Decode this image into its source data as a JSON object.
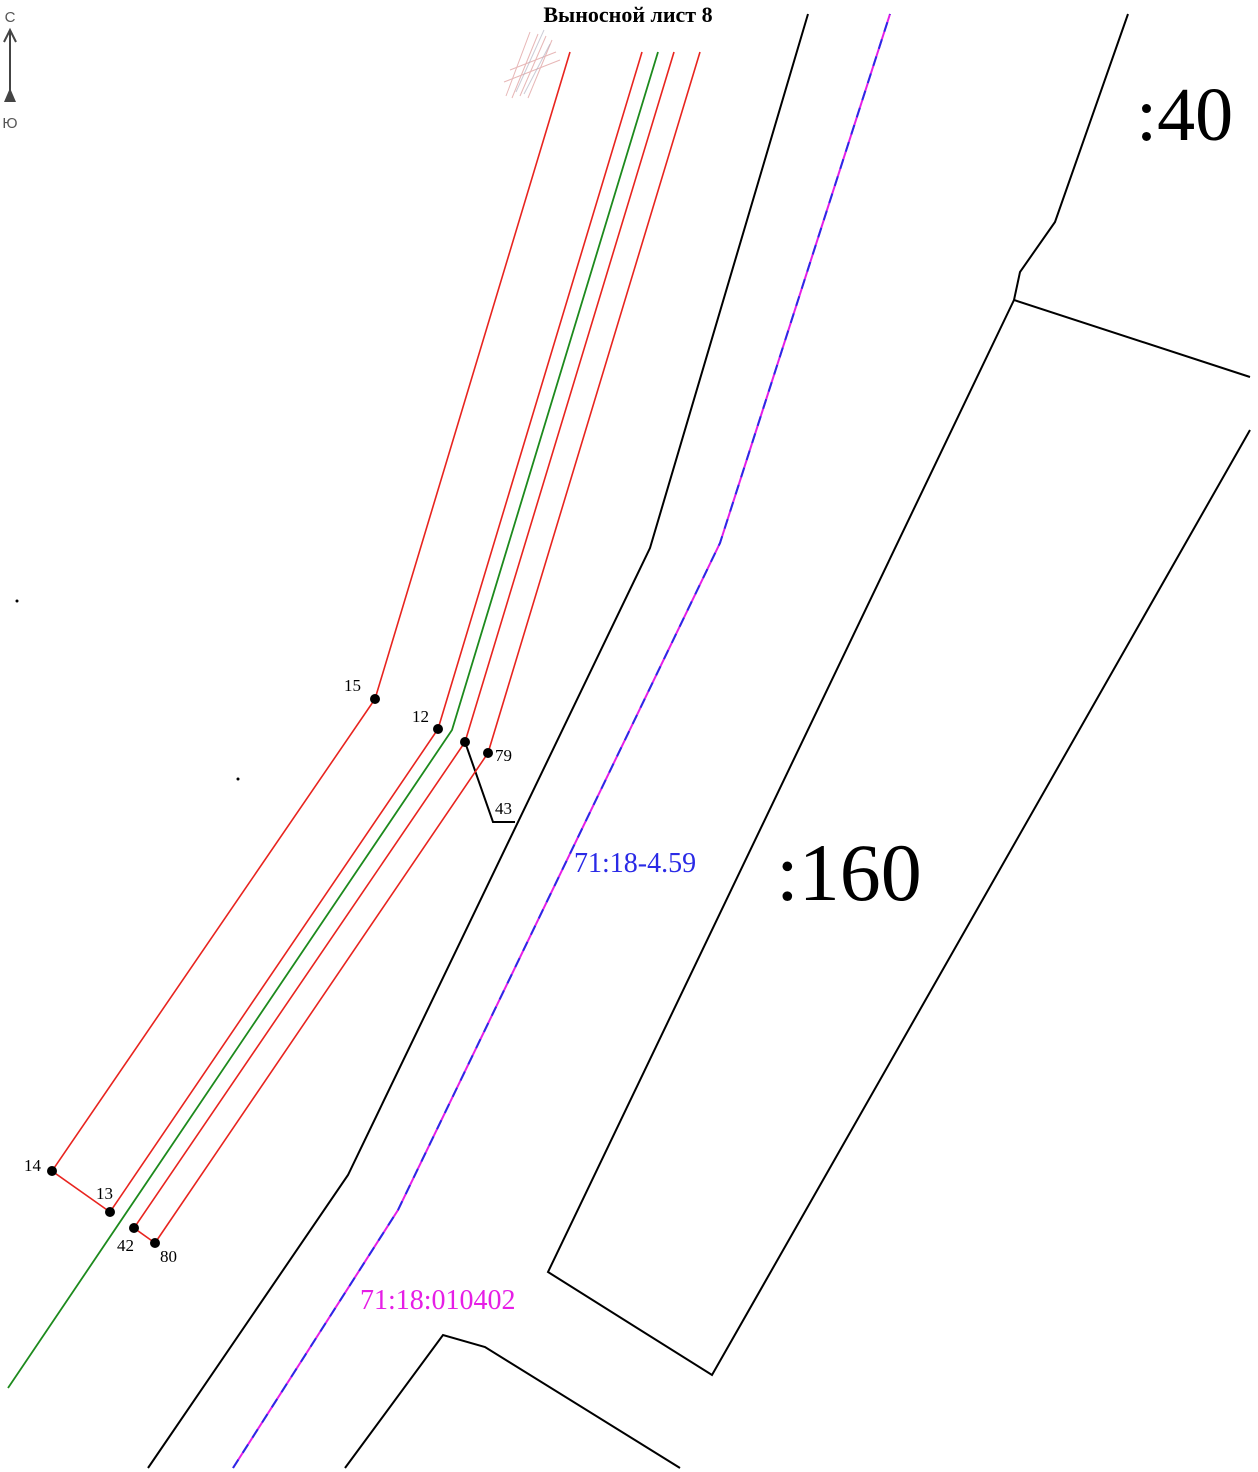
{
  "sheet_title": "Выносной лист 8",
  "compass": {
    "north": "С",
    "south": "Ю"
  },
  "parcels": {
    "upper": ":40",
    "main": ":160"
  },
  "zone_label": "71:18-4.59",
  "quarter_label": "71:18:010402",
  "points": [
    "15",
    "12",
    "79",
    "43",
    "14",
    "13",
    "42",
    "80"
  ],
  "colors": {
    "boundary": "#e8241f",
    "axis": "#1d8a1d",
    "parcel": "#000000",
    "zone": "#2a2ae6",
    "quarter": "#e61ee6"
  }
}
